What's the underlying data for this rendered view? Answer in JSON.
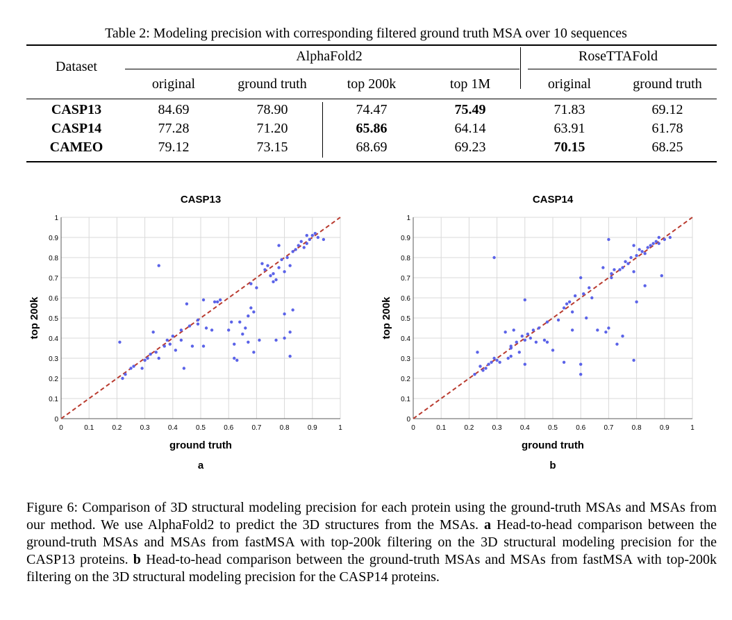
{
  "table": {
    "caption": "Table 2: Modeling precision with corresponding filtered ground truth MSA over 10 sequences",
    "dataset_header": "Dataset",
    "groups": [
      "AlphaFold2",
      "RoseTTAFold"
    ],
    "columns": [
      "original",
      "ground truth",
      "top 200k",
      "top 1M",
      "original",
      "ground truth"
    ],
    "rows": [
      {
        "name": "CASP13",
        "values": [
          "84.69",
          "78.90",
          "74.47",
          "75.49",
          "71.83",
          "69.12"
        ]
      },
      {
        "name": "CASP14",
        "values": [
          "77.28",
          "71.20",
          "65.86",
          "64.14",
          "63.91",
          "61.78"
        ]
      },
      {
        "name": "CAMEO",
        "values": [
          "79.12",
          "73.15",
          "68.69",
          "69.23",
          "70.15",
          "68.25"
        ]
      }
    ]
  },
  "chart_data": [
    {
      "type": "scatter",
      "title": "CASP13",
      "xlabel": "ground truth",
      "ylabel": "top 200k",
      "panel_label": "a",
      "xlim": [
        0,
        1
      ],
      "ylim": [
        0,
        1
      ],
      "xticks": [
        "0",
        "0.1",
        "0.2",
        "0.3",
        "0.4",
        "0.5",
        "0.6",
        "0.7",
        "0.8",
        "0.9",
        "1"
      ],
      "yticks": [
        "0",
        "0.1",
        "0.2",
        "0.3",
        "0.4",
        "0.5",
        "0.6",
        "0.7",
        "0.8",
        "0.9",
        "1"
      ],
      "grid": true,
      "reference_line": "y = x",
      "colors": {
        "points": "#5b63e8",
        "line": "#b93a2e",
        "grid": "#d9d9d9"
      },
      "x": [
        0.21,
        0.22,
        0.23,
        0.25,
        0.26,
        0.29,
        0.3,
        0.31,
        0.33,
        0.34,
        0.35,
        0.37,
        0.38,
        0.39,
        0.4,
        0.41,
        0.43,
        0.44,
        0.45,
        0.46,
        0.47,
        0.49,
        0.51,
        0.52,
        0.54,
        0.57,
        0.6,
        0.62,
        0.63,
        0.65,
        0.66,
        0.67,
        0.68,
        0.69,
        0.7,
        0.71,
        0.72,
        0.73,
        0.74,
        0.75,
        0.76,
        0.77,
        0.78,
        0.79,
        0.8,
        0.81,
        0.82,
        0.83,
        0.84,
        0.85,
        0.86,
        0.87,
        0.88,
        0.89,
        0.9,
        0.91,
        0.92,
        0.94,
        0.82,
        0.8,
        0.77,
        0.83,
        0.67,
        0.68,
        0.64,
        0.69,
        0.61,
        0.62,
        0.55,
        0.51,
        0.43,
        0.35,
        0.32,
        0.49,
        0.56,
        0.78,
        0.8,
        0.82,
        0.76,
        0.88
      ],
      "y": [
        0.38,
        0.2,
        0.22,
        0.25,
        0.26,
        0.25,
        0.29,
        0.3,
        0.43,
        0.33,
        0.76,
        0.36,
        0.39,
        0.37,
        0.41,
        0.34,
        0.39,
        0.25,
        0.57,
        0.46,
        0.36,
        0.49,
        0.59,
        0.45,
        0.44,
        0.59,
        0.44,
        0.3,
        0.29,
        0.42,
        0.45,
        0.51,
        0.67,
        0.53,
        0.65,
        0.39,
        0.77,
        0.74,
        0.76,
        0.71,
        0.72,
        0.69,
        0.75,
        0.79,
        0.73,
        0.8,
        0.76,
        0.83,
        0.84,
        0.86,
        0.88,
        0.85,
        0.87,
        0.89,
        0.91,
        0.92,
        0.9,
        0.89,
        0.31,
        0.4,
        0.39,
        0.54,
        0.38,
        0.55,
        0.48,
        0.33,
        0.48,
        0.37,
        0.58,
        0.36,
        0.44,
        0.3,
        0.32,
        0.47,
        0.58,
        0.86,
        0.52,
        0.43,
        0.68,
        0.91
      ]
    },
    {
      "type": "scatter",
      "title": "CASP14",
      "xlabel": "ground truth",
      "ylabel": "top 200k",
      "panel_label": "b",
      "xlim": [
        0,
        1
      ],
      "ylim": [
        0,
        1
      ],
      "xticks": [
        "0",
        "0.1",
        "0.2",
        "0.3",
        "0.4",
        "0.5",
        "0.6",
        "0.7",
        "0.8",
        "0.9",
        "1"
      ],
      "yticks": [
        "0",
        "0.1",
        "0.2",
        "0.3",
        "0.4",
        "0.5",
        "0.6",
        "0.7",
        "0.8",
        "0.9",
        "1"
      ],
      "grid": true,
      "reference_line": "y = x",
      "colors": {
        "points": "#5b63e8",
        "line": "#b93a2e",
        "grid": "#d9d9d9"
      },
      "x": [
        0.22,
        0.23,
        0.24,
        0.25,
        0.26,
        0.27,
        0.28,
        0.29,
        0.3,
        0.31,
        0.33,
        0.34,
        0.35,
        0.36,
        0.37,
        0.38,
        0.39,
        0.4,
        0.41,
        0.42,
        0.43,
        0.44,
        0.45,
        0.47,
        0.48,
        0.5,
        0.52,
        0.54,
        0.55,
        0.56,
        0.57,
        0.58,
        0.6,
        0.61,
        0.62,
        0.64,
        0.66,
        0.68,
        0.7,
        0.71,
        0.72,
        0.74,
        0.75,
        0.76,
        0.77,
        0.78,
        0.79,
        0.8,
        0.81,
        0.82,
        0.83,
        0.84,
        0.85,
        0.86,
        0.87,
        0.88,
        0.89,
        0.9,
        0.92,
        0.29,
        0.4,
        0.6,
        0.63,
        0.71,
        0.79,
        0.8,
        0.83,
        0.6,
        0.54,
        0.48,
        0.4,
        0.35,
        0.7,
        0.69,
        0.73,
        0.88,
        0.79,
        0.35,
        0.57,
        0.75
      ],
      "y": [
        0.22,
        0.33,
        0.26,
        0.24,
        0.25,
        0.27,
        0.28,
        0.3,
        0.29,
        0.28,
        0.43,
        0.3,
        0.36,
        0.44,
        0.38,
        0.33,
        0.41,
        0.39,
        0.42,
        0.4,
        0.44,
        0.38,
        0.45,
        0.39,
        0.48,
        0.34,
        0.49,
        0.55,
        0.57,
        0.58,
        0.53,
        0.61,
        0.22,
        0.62,
        0.5,
        0.6,
        0.44,
        0.75,
        0.89,
        0.72,
        0.74,
        0.74,
        0.75,
        0.78,
        0.77,
        0.8,
        0.86,
        0.81,
        0.84,
        0.83,
        0.82,
        0.85,
        0.86,
        0.87,
        0.88,
        0.87,
        0.71,
        0.89,
        0.9,
        0.8,
        0.59,
        0.7,
        0.65,
        0.7,
        0.29,
        0.58,
        0.66,
        0.27,
        0.28,
        0.38,
        0.27,
        0.35,
        0.45,
        0.43,
        0.37,
        0.9,
        0.73,
        0.31,
        0.44,
        0.41
      ]
    }
  ],
  "figure_caption": {
    "lead": "Figure 6:  Comparison of 3D structural modeling precision for each protein using the ground-truth MSAs and MSAs from our method.  We use AlphaFold2 to predict the 3D structures from the MSAs.",
    "a_label": "a",
    "a_text": "Head-to-head comparison between the ground-truth MSAs and MSAs from fastMSA with top-200k filtering on the 3D structural modeling precision for the CASP13 proteins.",
    "b_label": "b",
    "b_text": "Head-to-head comparison between the ground-truth MSAs and MSAs from fastMSA with top-200k filtering on the 3D structural modeling precision for the CASP14 proteins."
  }
}
